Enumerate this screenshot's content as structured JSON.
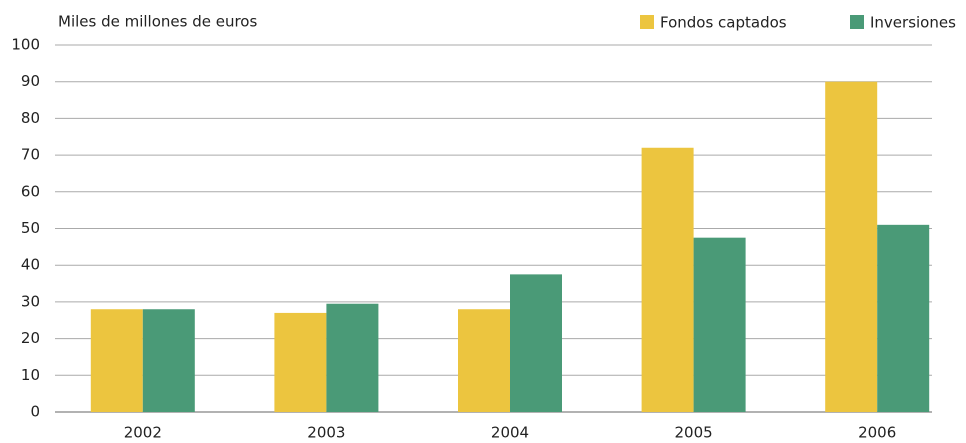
{
  "chart_data": {
    "type": "bar",
    "y_label": "Miles de millones de euros",
    "categories": [
      "2002",
      "2003",
      "2004",
      "2005",
      "2006"
    ],
    "series": [
      {
        "name": "Fondos captados",
        "color": "#ecc53f",
        "values": [
          28,
          27,
          28,
          72,
          90
        ]
      },
      {
        "name": "Inversiones",
        "color": "#4a9a77",
        "values": [
          28,
          29.5,
          37.5,
          47.5,
          51
        ]
      }
    ],
    "ylim": [
      0,
      100
    ],
    "yticks": [
      0,
      10,
      20,
      30,
      40,
      50,
      60,
      70,
      80,
      90,
      100
    ],
    "grid": true,
    "legend": "top right"
  }
}
